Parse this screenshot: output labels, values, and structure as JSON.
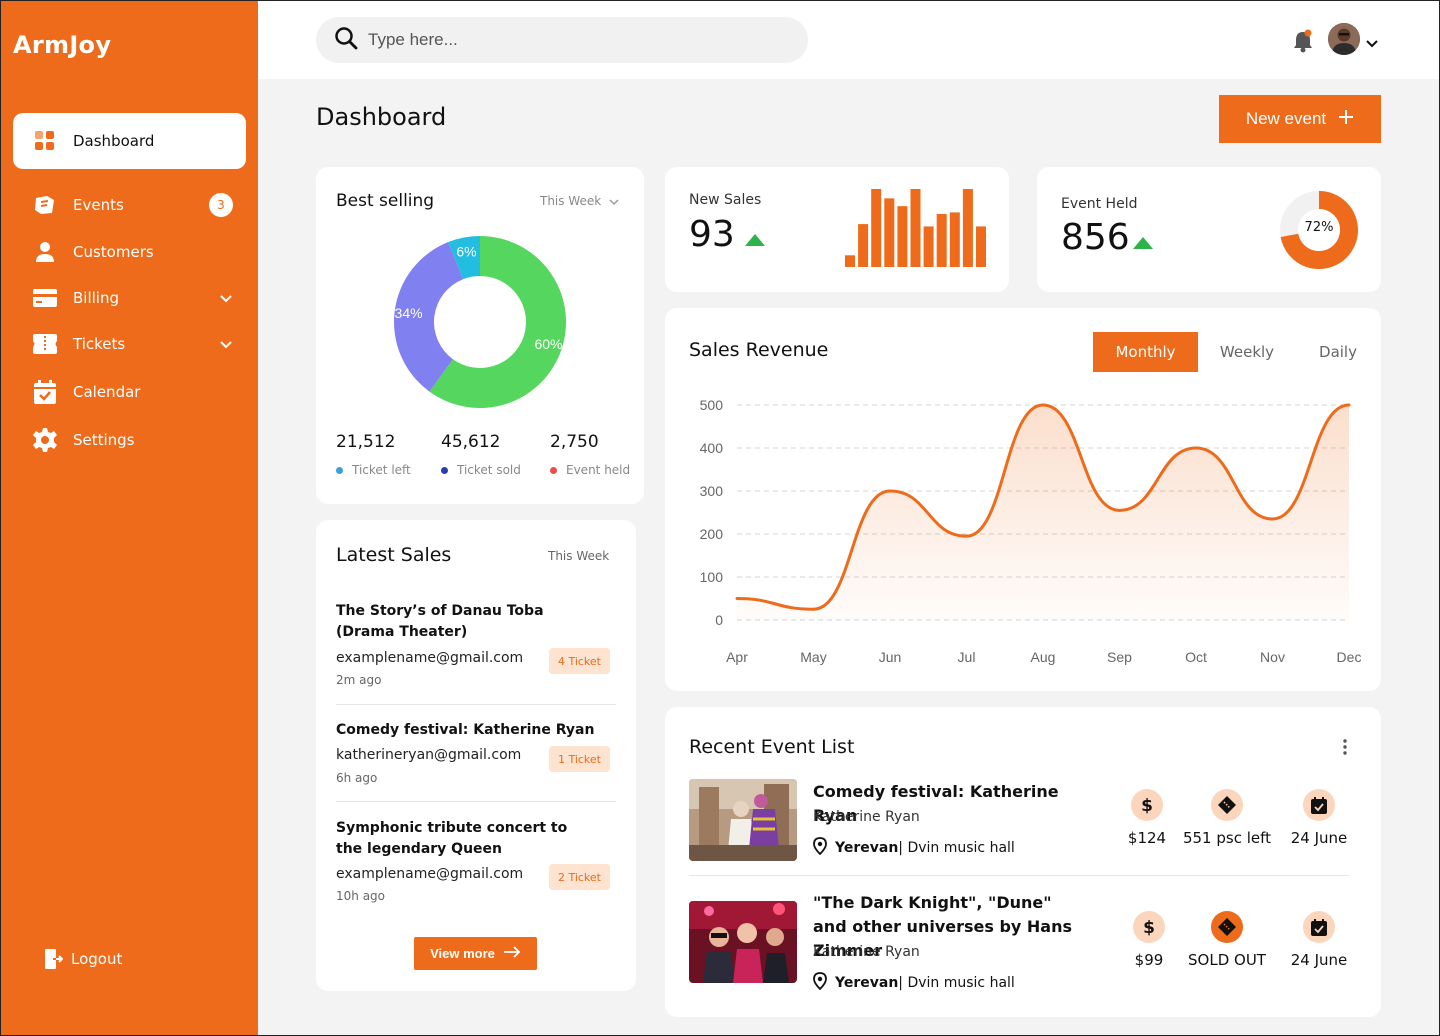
{
  "app": {
    "logo": "ArmJoy"
  },
  "sidebar": {
    "items": [
      {
        "label": "Dashboard",
        "icon": "dashboard-grid-icon",
        "active": true
      },
      {
        "label": "Events",
        "icon": "events-icon",
        "badge": "3"
      },
      {
        "label": "Customers",
        "icon": "user-icon"
      },
      {
        "label": "Billing",
        "icon": "credit-card-icon",
        "has_submenu": true
      },
      {
        "label": "Tickets",
        "icon": "ticket-icon",
        "has_submenu": true
      },
      {
        "label": "Calendar",
        "icon": "calendar-icon"
      },
      {
        "label": "Settings",
        "icon": "gear-icon"
      }
    ],
    "logout_label": "Logout"
  },
  "topbar": {
    "search_placeholder": "Type here...",
    "notification_icon": "bell-icon",
    "accent": "#ed6b1a"
  },
  "page": {
    "title": "Dashboard",
    "new_event_label": "New event"
  },
  "best_selling": {
    "title": "Best selling",
    "period": "This Week",
    "stats": [
      {
        "value": "21,512",
        "label": "Ticket left",
        "color": "#3aa0dc"
      },
      {
        "value": "45,612",
        "label": "Ticket sold",
        "color": "#2b3fa8"
      },
      {
        "value": "2,750",
        "label": "Event held",
        "color": "#ef4b4b"
      }
    ]
  },
  "new_sales": {
    "label": "New Sales",
    "value": "93",
    "bars": [
      0.15,
      0.55,
      1.0,
      0.88,
      0.78,
      1.0,
      0.52,
      0.68,
      0.7,
      1.0,
      0.52
    ],
    "trend": "up"
  },
  "event_held": {
    "label": "Event Held",
    "value": "856",
    "percent_label": "72%",
    "percent": 72,
    "trend": "up"
  },
  "sales_revenue": {
    "title": "Sales Revenue",
    "tabs": [
      {
        "label": "Monthly",
        "active": true
      },
      {
        "label": "Weekly"
      },
      {
        "label": "Daily"
      }
    ]
  },
  "latest_sales": {
    "title": "Latest Sales",
    "period": "This Week",
    "items": [
      {
        "title": "The Story’s of Danau Toba (Drama Theater)",
        "email": "examplename@gmail.com",
        "time": "2m ago",
        "tickets": "4 Ticket"
      },
      {
        "title": "Comedy festival: Katherine Ryan",
        "email": "katherineryan@gmail.com",
        "time": "6h ago",
        "tickets": "1 Ticket"
      },
      {
        "title": "Symphonic tribute concert to the legendary Queen",
        "email": "examplename@gmail.com",
        "time": "10h ago",
        "tickets": "2 Ticket"
      }
    ],
    "view_more_label": "View more"
  },
  "recent_events": {
    "title": "Recent Event List",
    "items": [
      {
        "title": "Comedy festival: Katherine Ryan",
        "host": "Katherine Ryan",
        "city": "Yerevan",
        "venue": " | Dvin music hall",
        "price": "$124",
        "availability": "551 psc left",
        "date": "24 June",
        "sold_out": false
      },
      {
        "title": "\"The Dark Knight\", \"Dune\" and other universes by Hans Zimmer",
        "host": "Katherine Ryan",
        "city": "Yerevan",
        "venue": " | Dvin music hall",
        "price": "$99",
        "availability": "SOLD OUT",
        "date": "24 June",
        "sold_out": true
      }
    ]
  },
  "chart_data": [
    {
      "type": "pie",
      "title": "Best selling",
      "slices": [
        {
          "label": "60%",
          "value": 60,
          "color": "#55d65e"
        },
        {
          "label": "34%",
          "value": 34,
          "color": "#8080f0"
        },
        {
          "label": "6%",
          "value": 6,
          "color": "#22bde0"
        }
      ]
    },
    {
      "type": "line",
      "title": "Sales Revenue",
      "categories": [
        "Apr",
        "May",
        "Jun",
        "Jul",
        "Aug",
        "Sep",
        "Oct",
        "Nov",
        "Dec"
      ],
      "values": [
        50,
        25,
        300,
        195,
        500,
        255,
        400,
        235,
        500
      ],
      "yticks": [
        "0",
        "100",
        "200",
        "300",
        "400",
        "500"
      ],
      "ylim": [
        0,
        500
      ],
      "color": "#ed6b1a",
      "grid": true
    }
  ]
}
